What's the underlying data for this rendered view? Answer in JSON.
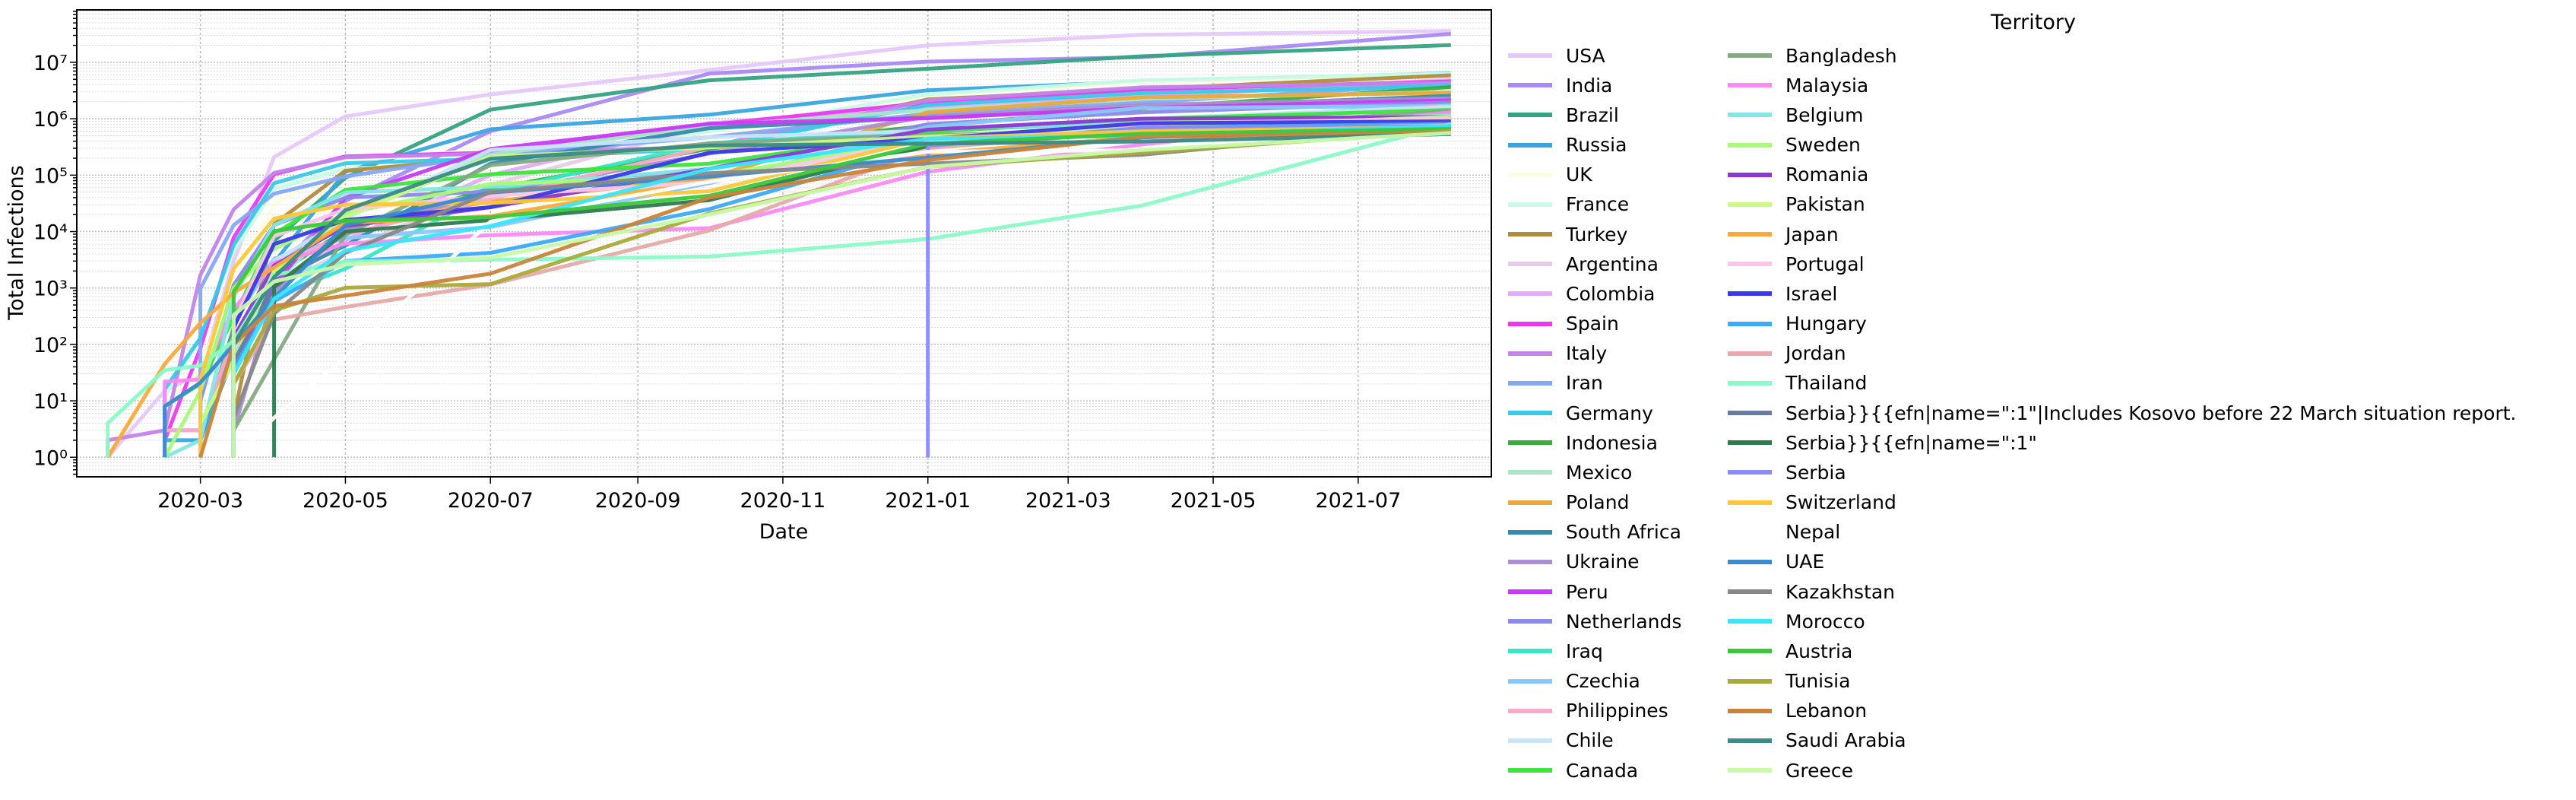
{
  "chart_data": {
    "type": "line",
    "title": "",
    "xlabel": "Date",
    "ylabel": "Total Infections",
    "yscale": "log",
    "ylim": [
      0.45,
      85000000
    ],
    "xlim": [
      "2020-01-09",
      "2021-08-26"
    ],
    "grid": true,
    "legend_title": "Territory",
    "legend_placement": "outside-right",
    "x_ticks": [
      "2020-03",
      "2020-05",
      "2020-07",
      "2020-09",
      "2020-11",
      "2021-01",
      "2021-03",
      "2021-05",
      "2021-07"
    ],
    "y_ticks": [
      {
        "value": 1,
        "label": "10⁰"
      },
      {
        "value": 10,
        "label": "10¹"
      },
      {
        "value": 100,
        "label": "10²"
      },
      {
        "value": 1000,
        "label": "10³"
      },
      {
        "value": 10000,
        "label": "10⁴"
      },
      {
        "value": 100000,
        "label": "10⁵"
      },
      {
        "value": 1000000,
        "label": "10⁶"
      },
      {
        "value": 10000000,
        "label": "10⁷"
      }
    ],
    "x": [
      "2020-01-22",
      "2020-02-15",
      "2020-03-01",
      "2020-03-15",
      "2020-04-01",
      "2020-05-01",
      "2020-07-01",
      "2020-10-01",
      "2021-01-01",
      "2021-04-01",
      "2021-08-09"
    ],
    "series": [
      {
        "name": "USA",
        "color": "#e5c8fb",
        "values": [
          1,
          15,
          30,
          3000,
          210000,
          1100000,
          2700000,
          7300000,
          20000000,
          30700000,
          36000000
        ]
      },
      {
        "name": "India",
        "color": "#a98af5",
        "values": [
          null,
          3,
          3,
          100,
          1900,
          35000,
          600000,
          6300000,
          10300000,
          12300000,
          32000000
        ]
      },
      {
        "name": "Brazil",
        "color": "#36a383",
        "values": [
          null,
          null,
          2,
          200,
          6800,
          90000,
          1450000,
          4800000,
          7700000,
          12800000,
          20200000
        ]
      },
      {
        "name": "Russia",
        "color": "#3aa6e0",
        "values": [
          null,
          2,
          2,
          60,
          2800,
          115000,
          650000,
          1180000,
          3200000,
          4550000,
          6400000
        ]
      },
      {
        "name": "UK",
        "color": "#fcfde3",
        "values": [
          null,
          9,
          35,
          1400,
          30000,
          180000,
          285000,
          460000,
          2500000,
          4350000,
          6200000
        ]
      },
      {
        "name": "France",
        "color": "#c9fbe6",
        "values": [
          null,
          12,
          130,
          4500,
          57000,
          130000,
          165000,
          600000,
          2700000,
          4800000,
          6300000
        ]
      },
      {
        "name": "Turkey",
        "color": "#b08d3d",
        "values": [
          null,
          null,
          null,
          5,
          13500,
          120000,
          200000,
          320000,
          2200000,
          3350000,
          5900000
        ]
      },
      {
        "name": "Argentina",
        "color": "#e6cde6",
        "values": [
          null,
          null,
          null,
          50,
          1050,
          4400,
          67000,
          760000,
          1630000,
          2390000,
          5000000
        ]
      },
      {
        "name": "Colombia",
        "color": "#e3abf8",
        "values": [
          null,
          null,
          null,
          30,
          1000,
          7000,
          100000,
          830000,
          1650000,
          2460000,
          4800000
        ]
      },
      {
        "name": "Spain",
        "color": "#ea3af0",
        "values": [
          null,
          2,
          85,
          7800,
          104000,
          215000,
          250000,
          780000,
          1930000,
          3300000,
          4600000
        ]
      },
      {
        "name": "Italy",
        "color": "#c385e8",
        "values": [
          2,
          3,
          1700,
          24700,
          110000,
          207000,
          240000,
          320000,
          2130000,
          3600000,
          4350000
        ]
      },
      {
        "name": "Iran",
        "color": "#85a8f5",
        "values": [
          null,
          null,
          980,
          13000,
          47000,
          95000,
          230000,
          470000,
          1230000,
          1930000,
          4200000
        ]
      },
      {
        "name": "Germany",
        "color": "#3ac8e6",
        "values": [
          null,
          16,
          130,
          5800,
          72000,
          163000,
          195000,
          295000,
          1750000,
          2850000,
          3800000
        ]
      },
      {
        "name": "Indonesia",
        "color": "#3caa3c",
        "values": [
          null,
          null,
          null,
          117,
          1680,
          10500,
          57000,
          295000,
          750000,
          1520000,
          3650000
        ]
      },
      {
        "name": "Mexico",
        "color": "#a8e6c8",
        "values": [
          null,
          null,
          4,
          53,
          1200,
          20000,
          230000,
          740000,
          1430000,
          2250000,
          3000000
        ]
      },
      {
        "name": "Poland",
        "color": "#e8aa3a",
        "values": [
          null,
          null,
          null,
          125,
          2500,
          13000,
          34000,
          90000,
          1300000,
          2400000,
          2880000
        ]
      },
      {
        "name": "South Africa",
        "color": "#3a8aaa",
        "values": [
          null,
          null,
          null,
          50,
          1350,
          5650,
          160000,
          680000,
          1060000,
          1550000,
          2550000
        ]
      },
      {
        "name": "Ukraine",
        "color": "#ab8ecf",
        "values": [
          null,
          null,
          null,
          3,
          800,
          11000,
          46000,
          240000,
          1090000,
          1760000,
          2300000
        ]
      },
      {
        "name": "Peru",
        "color": "#c83af5",
        "values": [
          null,
          null,
          null,
          40,
          1100,
          40000,
          290000,
          815000,
          1020000,
          1550000,
          2120000
        ]
      },
      {
        "name": "Netherlands",
        "color": "#8a8aea",
        "values": [
          null,
          null,
          10,
          1130,
          13000,
          40000,
          51000,
          130000,
          800000,
          1300000,
          1950000
        ]
      },
      {
        "name": "Iraq",
        "color": "#3ae6c8",
        "values": [
          null,
          null,
          19,
          110,
          700,
          2200,
          50000,
          370000,
          600000,
          900000,
          1750000
        ]
      },
      {
        "name": "Czechia",
        "color": "#8ac8fa",
        "values": [
          null,
          null,
          null,
          250,
          3300,
          7700,
          12000,
          72000,
          720000,
          1550000,
          1680000
        ]
      },
      {
        "name": "Philippines",
        "color": "#faaac8",
        "values": [
          null,
          3,
          3,
          140,
          2300,
          8900,
          38000,
          320000,
          475000,
          750000,
          1700000
        ]
      },
      {
        "name": "Chile",
        "color": "#c8e4fa",
        "values": [
          null,
          null,
          null,
          75,
          3000,
          17000,
          280000,
          470000,
          610000,
          1000000,
          1630000
        ]
      },
      {
        "name": "Canada",
        "color": "#3ae63a",
        "values": [
          null,
          8,
          20,
          300,
          9000,
          55000,
          104000,
          160000,
          580000,
          990000,
          1430000
        ]
      },
      {
        "name": "Bangladesh",
        "color": "#85aa85",
        "values": [
          null,
          null,
          null,
          3,
          54,
          8800,
          150000,
          365000,
          515000,
          600000,
          1380000
        ]
      },
      {
        "name": "Malaysia",
        "color": "#fa8af5",
        "values": [
          null,
          22,
          24,
          430,
          2800,
          6100,
          8650,
          11500,
          115000,
          350000,
          1300000
        ]
      },
      {
        "name": "Belgium",
        "color": "#85e6e6",
        "values": [
          null,
          1,
          2,
          700,
          13000,
          49000,
          62000,
          130000,
          650000,
          880000,
          1130000
        ]
      },
      {
        "name": "Sweden",
        "color": "#aafa7a",
        "values": [
          null,
          1,
          15,
          1000,
          4900,
          21000,
          70000,
          95000,
          440000,
          850000,
          1100000
        ]
      },
      {
        "name": "Romania",
        "color": "#8a3ad0",
        "values": [
          null,
          null,
          null,
          130,
          2500,
          12500,
          27000,
          130000,
          640000,
          1000000,
          1080000
        ]
      },
      {
        "name": "Pakistan",
        "color": "#c8fa85",
        "values": [
          null,
          null,
          4,
          50,
          2000,
          18000,
          215000,
          310000,
          480000,
          680000,
          1080000
        ]
      },
      {
        "name": "Japan",
        "color": "#faaa3a",
        "values": [
          1,
          45,
          240,
          820,
          2300,
          14300,
          18700,
          83000,
          240000,
          475000,
          1000000
        ]
      },
      {
        "name": "Portugal",
        "color": "#fac8e6",
        "values": [
          null,
          null,
          null,
          250,
          8250,
          25000,
          43000,
          75000,
          430000,
          825000,
          990000
        ]
      },
      {
        "name": "Israel",
        "color": "#3a3ae6",
        "values": [
          null,
          null,
          null,
          200,
          6000,
          16000,
          27000,
          250000,
          440000,
          830000,
          900000
        ]
      },
      {
        "name": "Hungary",
        "color": "#3aaafa",
        "values": [
          null,
          null,
          null,
          40,
          580,
          3000,
          4200,
          25000,
          330000,
          690000,
          810000
        ]
      },
      {
        "name": "Jordan",
        "color": "#e6aaaa",
        "values": [
          null,
          null,
          null,
          20,
          275,
          460,
          1150,
          10500,
          300000,
          600000,
          770000
        ]
      },
      {
        "name": "Thailand",
        "color": "#8afac8",
        "values": [
          4,
          35,
          42,
          115,
          1700,
          2950,
          3170,
          3600,
          7400,
          28900,
          800000
        ]
      },
      {
        "name": "Serbia}}{{efn|name=\":1\"|Includes Kosovo before 22 March situation report.",
        "color": "#6a7aa0",
        "values": [
          null,
          null,
          null,
          50,
          1000,
          9500,
          null,
          null,
          null,
          null,
          null
        ]
      },
      {
        "name": "Serbia}}{{efn|name=\":1\"",
        "color": "#2e7a50",
        "values": [
          null,
          null,
          null,
          null,
          1060,
          10000,
          16000,
          36000,
          330000,
          null,
          null
        ]
      },
      {
        "name": "Serbia",
        "color": "#8a8afa",
        "values": [
          null,
          null,
          null,
          null,
          null,
          null,
          null,
          null,
          330000,
          680000,
          730000
        ]
      },
      {
        "name": "Switzerland",
        "color": "#fac83a",
        "values": [
          null,
          null,
          24,
          2200,
          17000,
          30000,
          32000,
          52000,
          450000,
          600000,
          710000
        ]
      },
      {
        "name": "Nepal",
        "color": "#ffffff",
        "values": [
          null,
          null,
          null,
          1,
          5,
          60,
          15000,
          77000,
          260000,
          277000,
          750000
        ]
      },
      {
        "name": "UAE",
        "color": "#3a8ad0",
        "values": [
          null,
          8,
          21,
          98,
          660,
          13000,
          49000,
          95000,
          205000,
          465000,
          700000
        ]
      },
      {
        "name": "Kazakhstan",
        "color": "#888888",
        "values": [
          null,
          null,
          null,
          5,
          350,
          4200,
          50000,
          108000,
          160000,
          230000,
          750000
        ]
      },
      {
        "name": "Morocco",
        "color": "#3ae6fa",
        "values": [
          null,
          null,
          null,
          30,
          640,
          4600,
          12500,
          130000,
          440000,
          500000,
          740000
        ]
      },
      {
        "name": "Austria",
        "color": "#3ac83a",
        "values": [
          null,
          null,
          null,
          860,
          10200,
          15500,
          18000,
          43000,
          360000,
          540000,
          660000
        ]
      },
      {
        "name": "Tunisia",
        "color": "#aaaa3a",
        "values": [
          null,
          null,
          null,
          20,
          400,
          1010,
          1170,
          21000,
          140000,
          250000,
          610000
        ]
      },
      {
        "name": "Lebanon",
        "color": "#c8853a",
        "values": [
          null,
          null,
          1,
          100,
          480,
          730,
          1800,
          40000,
          185000,
          480000,
          570000
        ]
      },
      {
        "name": "Saudi Arabia",
        "color": "#3a8a85",
        "values": [
          null,
          null,
          null,
          100,
          1560,
          24000,
          195000,
          335000,
          363000,
          395000,
          535000
        ]
      },
      {
        "name": "Greece",
        "color": "#c8faaa",
        "values": [
          null,
          null,
          null,
          330,
          1300,
          2600,
          3450,
          20000,
          140000,
          280000,
          560000
        ]
      }
    ]
  }
}
